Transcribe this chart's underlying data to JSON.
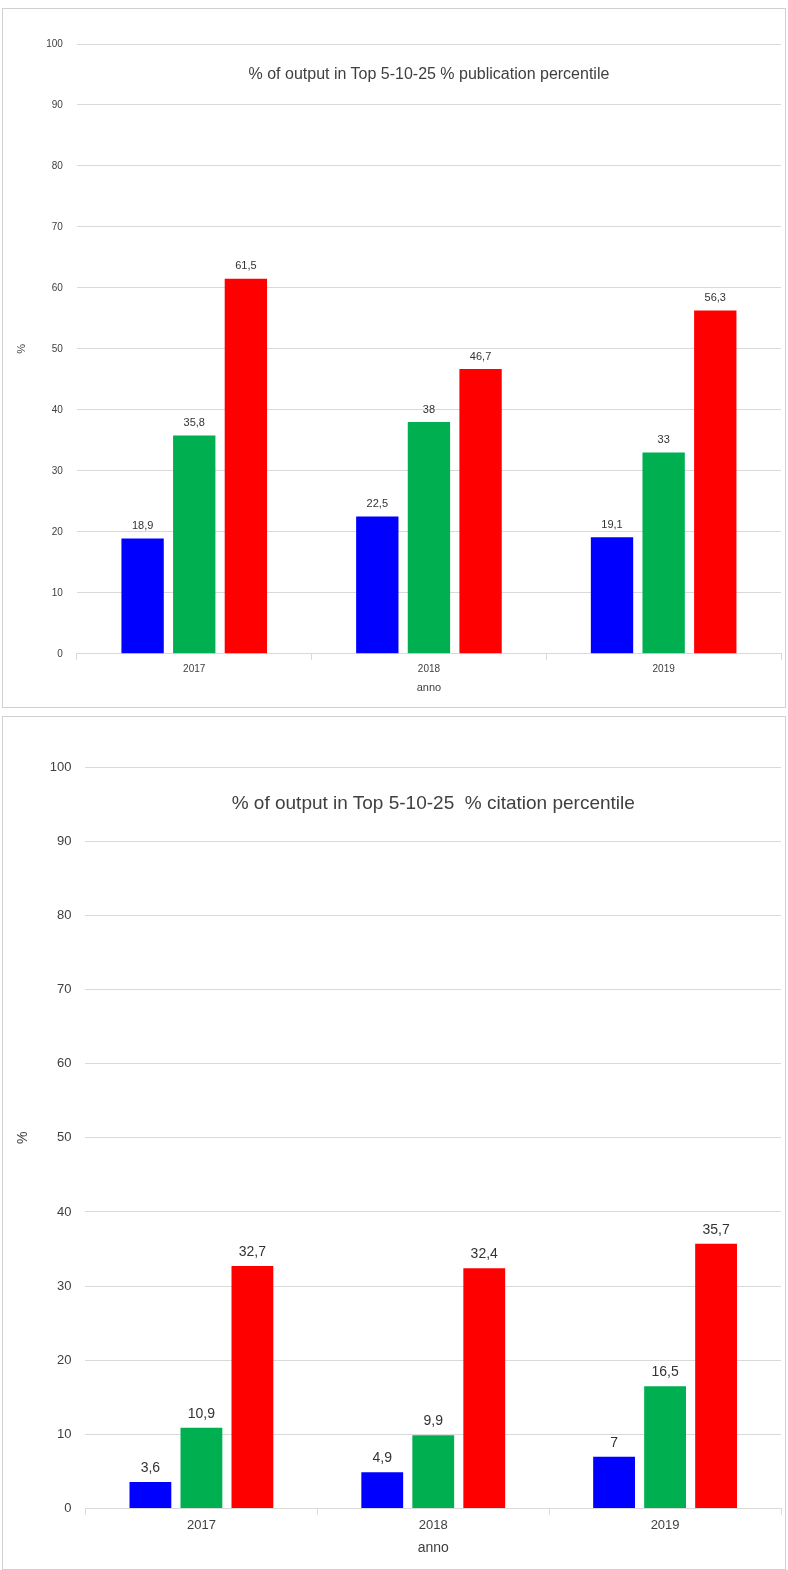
{
  "chart_data": [
    {
      "type": "bar",
      "title": "% of output in Top 5-10-25 % publication percentile",
      "xlabel": "anno",
      "ylabel": "%",
      "categories": [
        "2017",
        "2018",
        "2019"
      ],
      "series": [
        {
          "color": "#0000ff",
          "values": [
            18.9,
            22.5,
            19.1
          ],
          "value_labels": [
            "18,9",
            "22,5",
            "19,1"
          ]
        },
        {
          "color": "#00b050",
          "values": [
            35.8,
            38,
            33
          ],
          "value_labels": [
            "35,8",
            "38",
            "33"
          ]
        },
        {
          "color": "#ff0000",
          "values": [
            61.5,
            46.7,
            56.3
          ],
          "value_labels": [
            "61,5",
            "46,7",
            "56,3"
          ]
        }
      ],
      "ylim": [
        0,
        100
      ],
      "yticks": [
        0,
        10,
        20,
        30,
        40,
        50,
        60,
        70,
        80,
        90,
        100
      ],
      "grid": "y",
      "legend": false
    },
    {
      "type": "bar",
      "title": "% of output in Top 5-10-25  % citation percentile",
      "xlabel": "anno",
      "ylabel": "%",
      "categories": [
        "2017",
        "2018",
        "2019"
      ],
      "series": [
        {
          "color": "#0000ff",
          "values": [
            3.6,
            4.9,
            7
          ],
          "value_labels": [
            "3,6",
            "4,9",
            "7"
          ]
        },
        {
          "color": "#00b050",
          "values": [
            10.9,
            9.9,
            16.5
          ],
          "value_labels": [
            "10,9",
            "9,9",
            "16,5"
          ]
        },
        {
          "color": "#ff0000",
          "values": [
            32.7,
            32.4,
            35.7
          ],
          "value_labels": [
            "32,7",
            "32,4",
            "35,7"
          ]
        }
      ],
      "ylim": [
        0,
        100
      ],
      "yticks": [
        0,
        10,
        20,
        30,
        40,
        50,
        60,
        70,
        80,
        90,
        100
      ],
      "grid": "y",
      "legend": false
    }
  ]
}
